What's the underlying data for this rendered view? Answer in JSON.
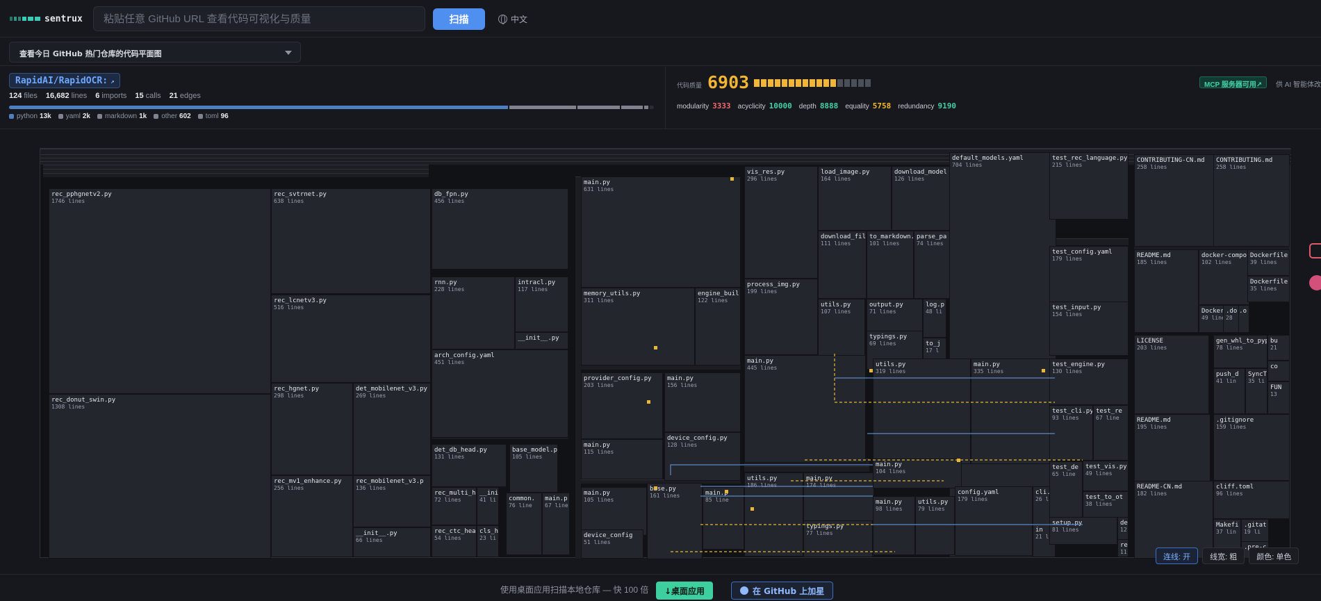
{
  "app": {
    "name": "sentrux"
  },
  "search": {
    "placeholder": "粘贴任意 GitHub URL 查看代码可视化与质量",
    "value": ""
  },
  "scan_button": "扫描",
  "language_toggle": "中文",
  "trending_select": "查看今日 GitHub 热门仓库的代码平面图",
  "repo": {
    "name": "RapidAI/RapidOCR:",
    "ext_icon": "external-link-icon",
    "stats": [
      {
        "value": "124",
        "label": "files"
      },
      {
        "value": "16,682",
        "label": "lines"
      },
      {
        "value": "6",
        "label": "imports"
      },
      {
        "value": "15",
        "label": "calls"
      },
      {
        "value": "21",
        "label": "edges"
      }
    ],
    "languages": [
      {
        "name": "python",
        "value": "13k",
        "share": 0.776,
        "color": "#4e7fc0"
      },
      {
        "name": "yaml",
        "value": "2k",
        "share": 0.105,
        "color": "#7e838d"
      },
      {
        "name": "markdown",
        "value": "1k",
        "share": 0.068,
        "color": "#7e838d"
      },
      {
        "name": "other",
        "value": "602",
        "share": 0.036,
        "color": "#7e838d"
      },
      {
        "name": "toml",
        "value": "96",
        "share": 0.009,
        "color": "#7e838d"
      }
    ]
  },
  "quality": {
    "label": "代码质量",
    "score": "6903",
    "filled_blocks": 12,
    "total_blocks": 17,
    "metrics": [
      {
        "name": "modularity",
        "value": "3333",
        "color": "#f06a6a"
      },
      {
        "name": "acyclicity",
        "value": "10000",
        "color": "#43d0a6"
      },
      {
        "name": "depth",
        "value": "8888",
        "color": "#43d0a6"
      },
      {
        "name": "equality",
        "value": "5758",
        "color": "#f3b634"
      },
      {
        "name": "redundancy",
        "value": "9190",
        "color": "#43d0a6"
      }
    ],
    "mcp_badge": "MCP 服务器可用↗",
    "mcp_note": "供 AI 智能体改进"
  },
  "treemap": {
    "nodes": [
      {
        "n": "rec_pphgnetv2.py",
        "l": "1746 lines"
      },
      {
        "n": "rec_donut_swin.py",
        "l": "1308 lines"
      },
      {
        "n": "rec_svtrnet.py",
        "l": "638 lines"
      },
      {
        "n": "rec_lcnetv3.py",
        "l": "516 lines"
      },
      {
        "n": "rec_hgnet.py",
        "l": "298 lines"
      },
      {
        "n": "det_mobilenet_v3.py",
        "l": "269 lines"
      },
      {
        "n": "rec_mv1_enhance.py",
        "l": "256 lines"
      },
      {
        "n": "rec_mobilenet_v3.p",
        "l": "136 lines"
      },
      {
        "n": "__init__.py",
        "l": "66 lines"
      },
      {
        "n": "db_fpn.py",
        "l": "456 lines"
      },
      {
        "n": "rnn.py",
        "l": "228 lines"
      },
      {
        "n": "intracl.py",
        "l": "117 lines"
      },
      {
        "n": "__init__.py",
        "l": ""
      },
      {
        "n": "arch_config.yaml",
        "l": "451 lines"
      },
      {
        "n": "det_db_head.py",
        "l": "131 lines"
      },
      {
        "n": "base_model.p",
        "l": "105 lines"
      },
      {
        "n": "rec_multi_he",
        "l": "72 lines"
      },
      {
        "n": "__ini",
        "l": "41 li"
      },
      {
        "n": "common.",
        "l": "76 line"
      },
      {
        "n": "main.p",
        "l": "67 line"
      },
      {
        "n": "rec_ctc_head",
        "l": "54 lines"
      },
      {
        "n": "cls_h",
        "l": "23 li"
      },
      {
        "n": "main.py",
        "l": "631 lines"
      },
      {
        "n": "memory_utils.py",
        "l": "311 lines"
      },
      {
        "n": "engine_buil",
        "l": "122 lines"
      },
      {
        "n": "provider_config.py",
        "l": "203 lines"
      },
      {
        "n": "main.py",
        "l": "156 lines"
      },
      {
        "n": "main.py",
        "l": "115 lines"
      },
      {
        "n": "device_config.py",
        "l": "128 lines"
      },
      {
        "n": "main.py",
        "l": "105 lines"
      },
      {
        "n": "base.py",
        "l": "161 lines"
      },
      {
        "n": "main.p",
        "l": "85 line"
      },
      {
        "n": "device_config",
        "l": "51 lines"
      },
      {
        "n": "vis_res.py",
        "l": "296 lines"
      },
      {
        "n": "load_image.py",
        "l": "164 lines"
      },
      {
        "n": "download_model",
        "l": "126 lines"
      },
      {
        "n": "default_models.yaml",
        "l": "704 lines"
      },
      {
        "n": "download_fil",
        "l": "111 lines"
      },
      {
        "n": "to_markdown.",
        "l": "101 lines"
      },
      {
        "n": "parse_pa",
        "l": "74 lines"
      },
      {
        "n": "process_img.py",
        "l": "199 lines"
      },
      {
        "n": "utils.py",
        "l": "107 lines"
      },
      {
        "n": "output.py",
        "l": "71 lines"
      },
      {
        "n": "log.p",
        "l": "48 li"
      },
      {
        "n": "typings.py",
        "l": "69 lines"
      },
      {
        "n": "to_j",
        "l": "17 l"
      },
      {
        "n": "main.py",
        "l": "445 lines"
      },
      {
        "n": "utils.py",
        "l": "319 lines"
      },
      {
        "n": "main.py",
        "l": "335 lines"
      },
      {
        "n": "utils.py",
        "l": "186 lines"
      },
      {
        "n": "main.py",
        "l": "174 lines"
      },
      {
        "n": "main.py",
        "l": "104 lines"
      },
      {
        "n": "main.py",
        "l": "98 lines"
      },
      {
        "n": "utils.py",
        "l": "79 lines"
      },
      {
        "n": "config.yaml",
        "l": "179 lines"
      },
      {
        "n": "cli.",
        "l": "26 l"
      },
      {
        "n": "typings.py",
        "l": "77 lines"
      },
      {
        "n": "in",
        "l": "21 l"
      },
      {
        "n": "test_rec_language.py",
        "l": "215 lines"
      },
      {
        "n": "test_config.yaml",
        "l": "179 lines"
      },
      {
        "n": "test_input.py",
        "l": "154 lines"
      },
      {
        "n": "test_engine.py",
        "l": "130 lines"
      },
      {
        "n": "test_cli.py",
        "l": "93 lines"
      },
      {
        "n": "test_re",
        "l": "67 line"
      },
      {
        "n": "test_de",
        "l": "65 line"
      },
      {
        "n": "test_vis.py",
        "l": "49 lines"
      },
      {
        "n": "test_to_ot",
        "l": "38 lines"
      },
      {
        "n": "setup.py",
        "l": "81 lines"
      },
      {
        "n": "dem",
        "l": "12"
      },
      {
        "n": "req",
        "l": "11"
      },
      {
        "n": "CONTRIBUTING-CN.md",
        "l": "258 lines"
      },
      {
        "n": "CONTRIBUTING.md",
        "l": "258 lines"
      },
      {
        "n": "README.md",
        "l": "185 lines"
      },
      {
        "n": "docker-compo",
        "l": "102 lines"
      },
      {
        "n": "Dockerfile",
        "l": "39 lines"
      },
      {
        "n": "Dockerfile",
        "l": "35 lines"
      },
      {
        "n": "Dockerfile.o",
        "l": "49 lines"
      },
      {
        "n": ".do",
        "l": "28"
      },
      {
        "n": "LICENSE",
        "l": "203 lines"
      },
      {
        "n": "gen_whl_to_pyp",
        "l": "78 lines"
      },
      {
        "n": "bu",
        "l": "21"
      },
      {
        "n": "push_d",
        "l": "41 lin"
      },
      {
        "n": "SyncT",
        "l": "35 li"
      },
      {
        "n": "co",
        "l": ""
      },
      {
        "n": "FUN",
        "l": "13"
      },
      {
        "n": "README.md",
        "l": "195 lines"
      },
      {
        "n": ".gitignore",
        "l": "159 lines"
      },
      {
        "n": "README-CN.md",
        "l": "182 lines"
      },
      {
        "n": "cliff.toml",
        "l": "96 lines"
      },
      {
        "n": "Makefi",
        "l": "37 lin"
      },
      {
        "n": ".gitat",
        "l": "19 li"
      },
      {
        "n": ".pre-c",
        "l": ""
      }
    ]
  },
  "map_controls": {
    "edges_toggle": "连线: 开",
    "line_width": "线宽: 粗",
    "color_mode": "颜色: 单色"
  },
  "footer": {
    "text": "使用桌面应用扫描本地仓库 — 快 100 倍",
    "desktop_button": "↓桌面应用",
    "github_button": "在 GitHub 上加星"
  }
}
